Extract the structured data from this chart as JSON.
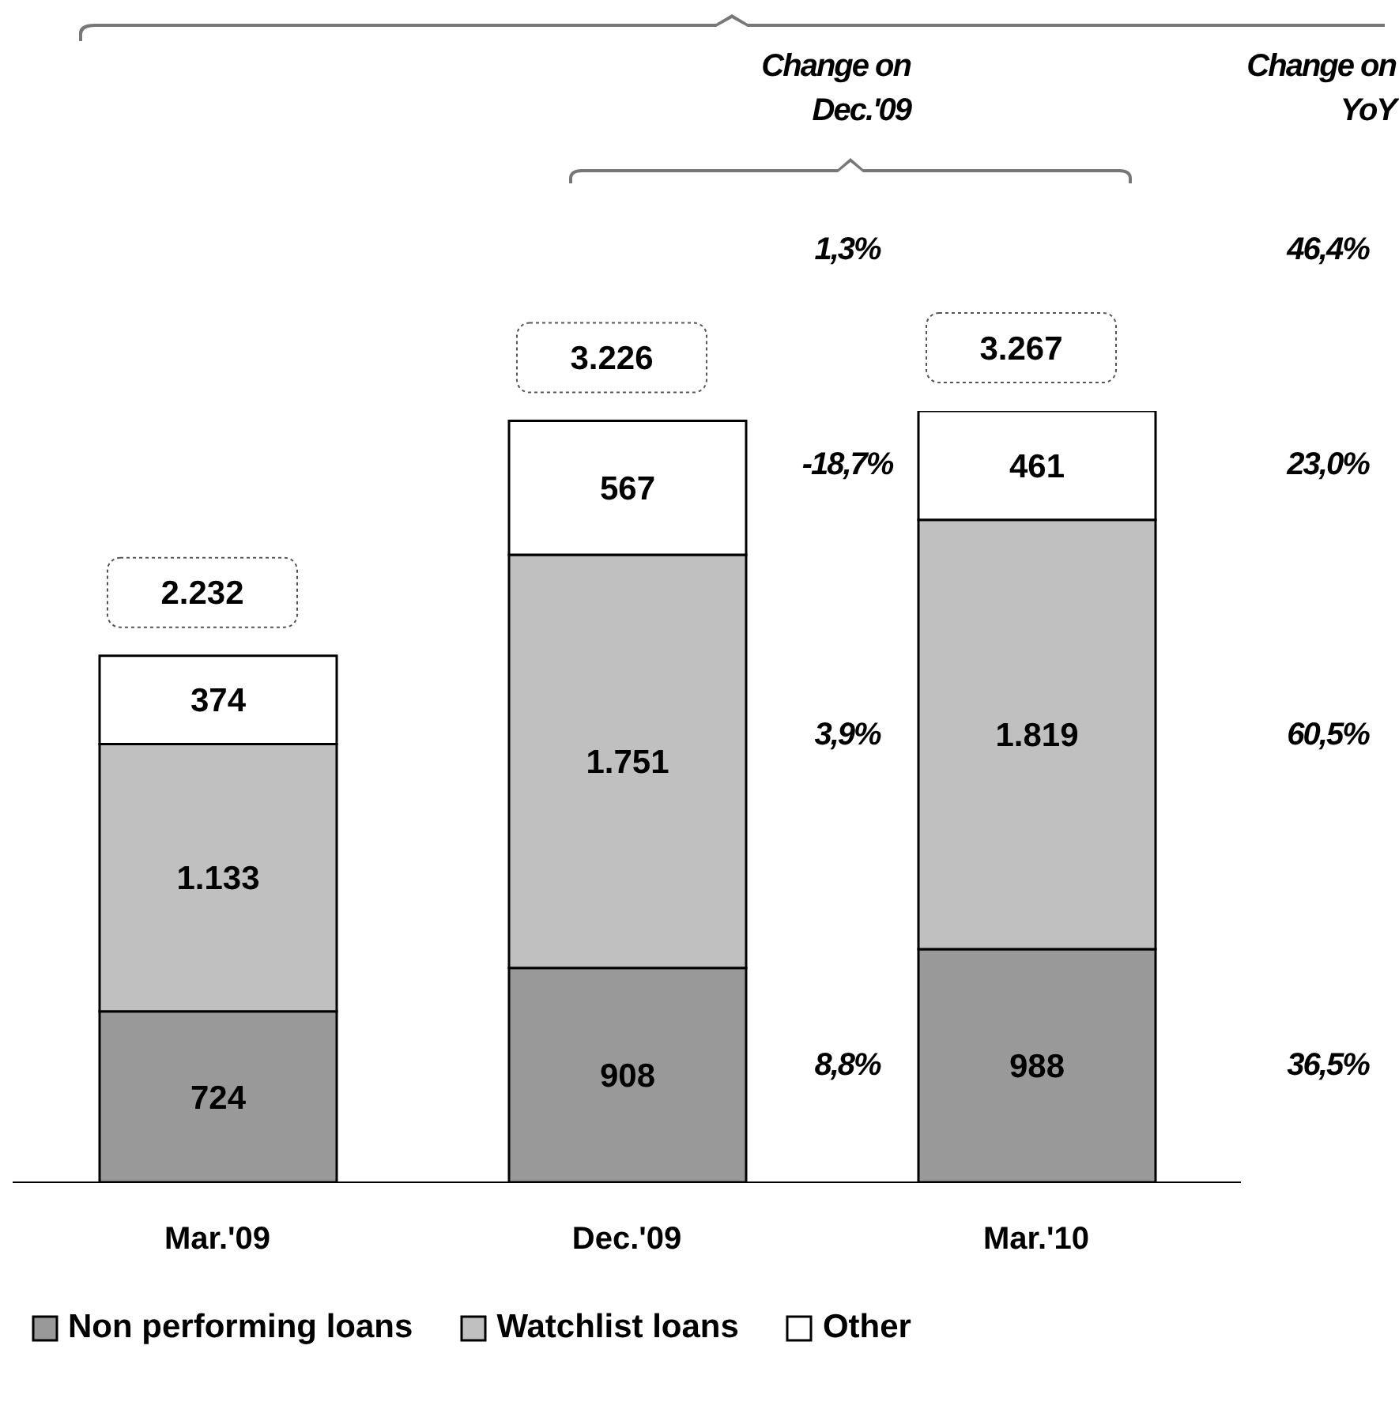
{
  "chart_data": {
    "type": "bar",
    "stacked": true,
    "categories": [
      "Mar.'09",
      "Dec.'09",
      "Mar.'10"
    ],
    "series": [
      {
        "name": "Non performing loans",
        "color": "#999999",
        "values": [
          724,
          908,
          988
        ],
        "value_labels": [
          "724",
          "908",
          "988"
        ]
      },
      {
        "name": "Watchlist loans",
        "color": "#c0c0c0",
        "values": [
          1133,
          1751,
          1819
        ],
        "value_labels": [
          "1.133",
          "1.751",
          "1.819"
        ]
      },
      {
        "name": "Other",
        "color": "#ffffff",
        "values": [
          374,
          567,
          461
        ],
        "value_labels": [
          "374",
          "567",
          "461"
        ]
      }
    ],
    "totals": [
      "2.232",
      "3.226",
      "3.267"
    ],
    "annotations": [
      "Change on Dec.'09",
      "Change on YoY",
      "1,3%",
      "46,4%",
      "-18,7%",
      "23,0%",
      "3,9%",
      "60,5%",
      "8,8%",
      "36,5%"
    ],
    "legend": "bottom"
  }
}
